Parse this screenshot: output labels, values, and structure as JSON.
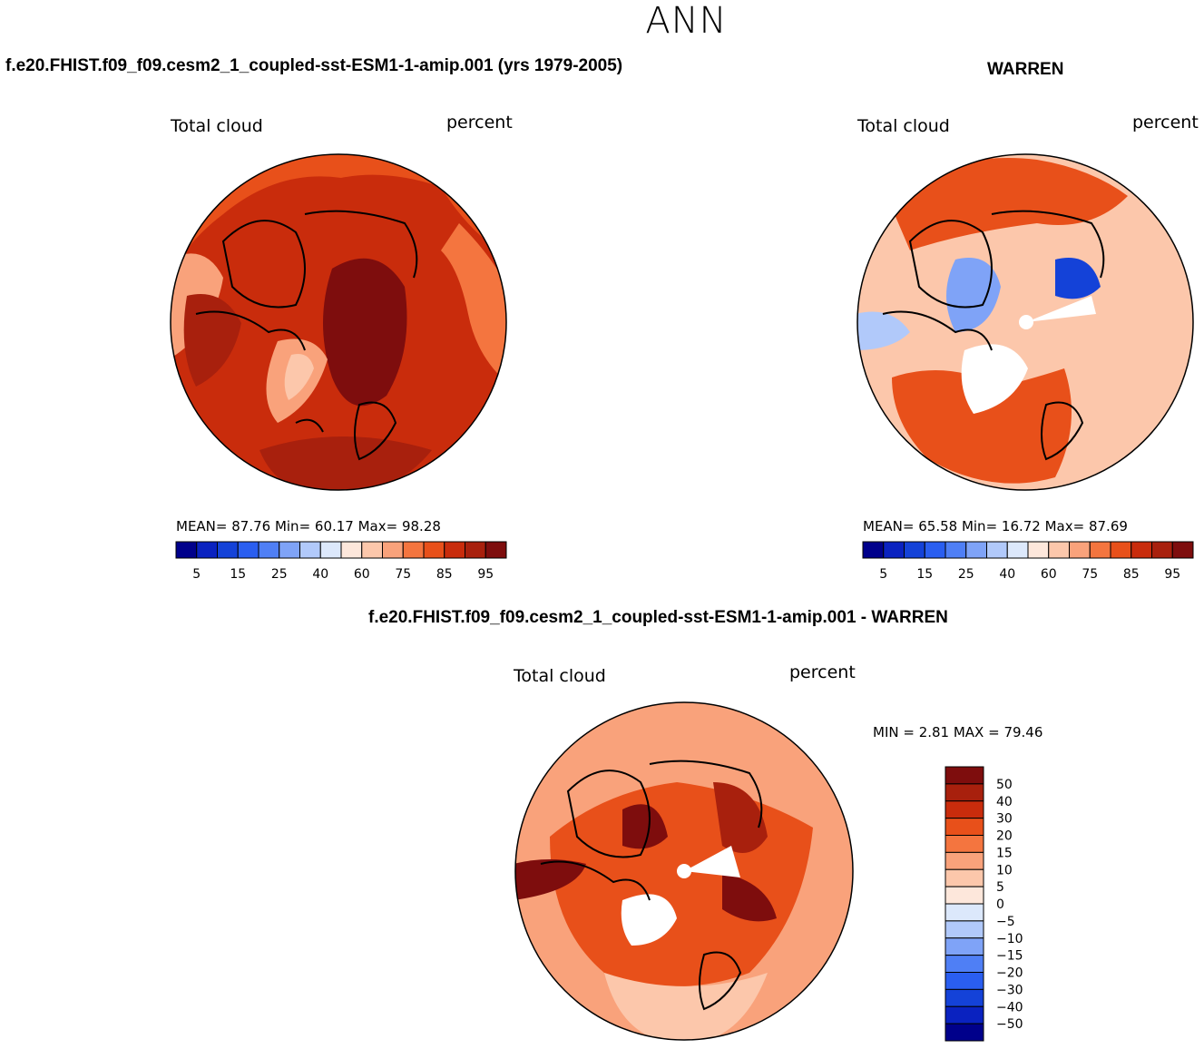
{
  "title": "ANN",
  "panels": {
    "model": {
      "case": "f.e20.FHIST.f09_f09.cesm2_1_coupled-sst-ESM1-1-amip.001 (yrs 1979-2005)",
      "variable": "Total cloud",
      "units": "percent",
      "stats_line": "MEAN=   87.76   Min=   60.17   Max=   98.28"
    },
    "obs": {
      "case": "WARREN",
      "variable": "Total cloud",
      "units": "percent",
      "stats_line": "MEAN=   65.58   Min=   16.72   Max=   87.69"
    },
    "diff": {
      "case": "f.e20.FHIST.f09_f09.cesm2_1_coupled-sst-ESM1-1-amip.001 - WARREN",
      "variable": "Total cloud",
      "units": "percent",
      "stats_line": "MIN =     2.81  MAX =    79.46"
    }
  },
  "colorbars": {
    "field": {
      "colors": [
        "#00008b",
        "#0a22c0",
        "#1442d8",
        "#2a5ef0",
        "#4f7ff5",
        "#7fa3f7",
        "#b1c9fa",
        "#dce8fb",
        "#fde7db",
        "#fcc7ab",
        "#f9a27b",
        "#f4753f",
        "#e8501a",
        "#c92c0c",
        "#a8200d",
        "#7e0d0d"
      ],
      "tick_labels": [
        "5",
        "15",
        "25",
        "40",
        "60",
        "75",
        "85",
        "95"
      ]
    },
    "diff": {
      "colors": [
        "#00008b",
        "#0a22c0",
        "#1442d8",
        "#2a5ef0",
        "#4f7ff5",
        "#7fa3f7",
        "#b1c9fa",
        "#dce8fb",
        "#fde7db",
        "#fcc7ab",
        "#f9a27b",
        "#f4753f",
        "#e8501a",
        "#c92c0c",
        "#a8200d",
        "#7e0d0d"
      ],
      "tick_labels": [
        "50",
        "40",
        "30",
        "20",
        "15",
        "10",
        "5",
        "0",
        "−5",
        "−10",
        "−15",
        "−20",
        "−30",
        "−40",
        "−50"
      ]
    }
  },
  "chart_data": [
    {
      "type": "heatmap",
      "title": "Total cloud",
      "units": "percent",
      "projection": "north polar stereographic",
      "stats": {
        "mean": 87.76,
        "min": 60.17,
        "max": 98.28
      },
      "levels": [
        5,
        10,
        15,
        20,
        25,
        30,
        40,
        50,
        60,
        70,
        75,
        80,
        85,
        90,
        95
      ],
      "dominant_level_range": [
        85,
        98
      ]
    },
    {
      "type": "heatmap",
      "title": "Total cloud",
      "units": "percent",
      "projection": "north polar stereographic",
      "stats": {
        "mean": 65.58,
        "min": 16.72,
        "max": 87.69
      },
      "levels": [
        5,
        10,
        15,
        20,
        25,
        30,
        40,
        50,
        60,
        70,
        75,
        80,
        85,
        90,
        95
      ],
      "dominant_level_range": [
        60,
        80
      ]
    },
    {
      "type": "heatmap",
      "title": "Total cloud",
      "units": "percent",
      "projection": "north polar stereographic",
      "stats": {
        "min": 2.81,
        "max": 79.46
      },
      "levels": [
        -50,
        -40,
        -30,
        -20,
        -15,
        -10,
        -5,
        0,
        5,
        10,
        15,
        20,
        30,
        40,
        50
      ],
      "dominant_level_range": [
        10,
        30
      ]
    }
  ]
}
